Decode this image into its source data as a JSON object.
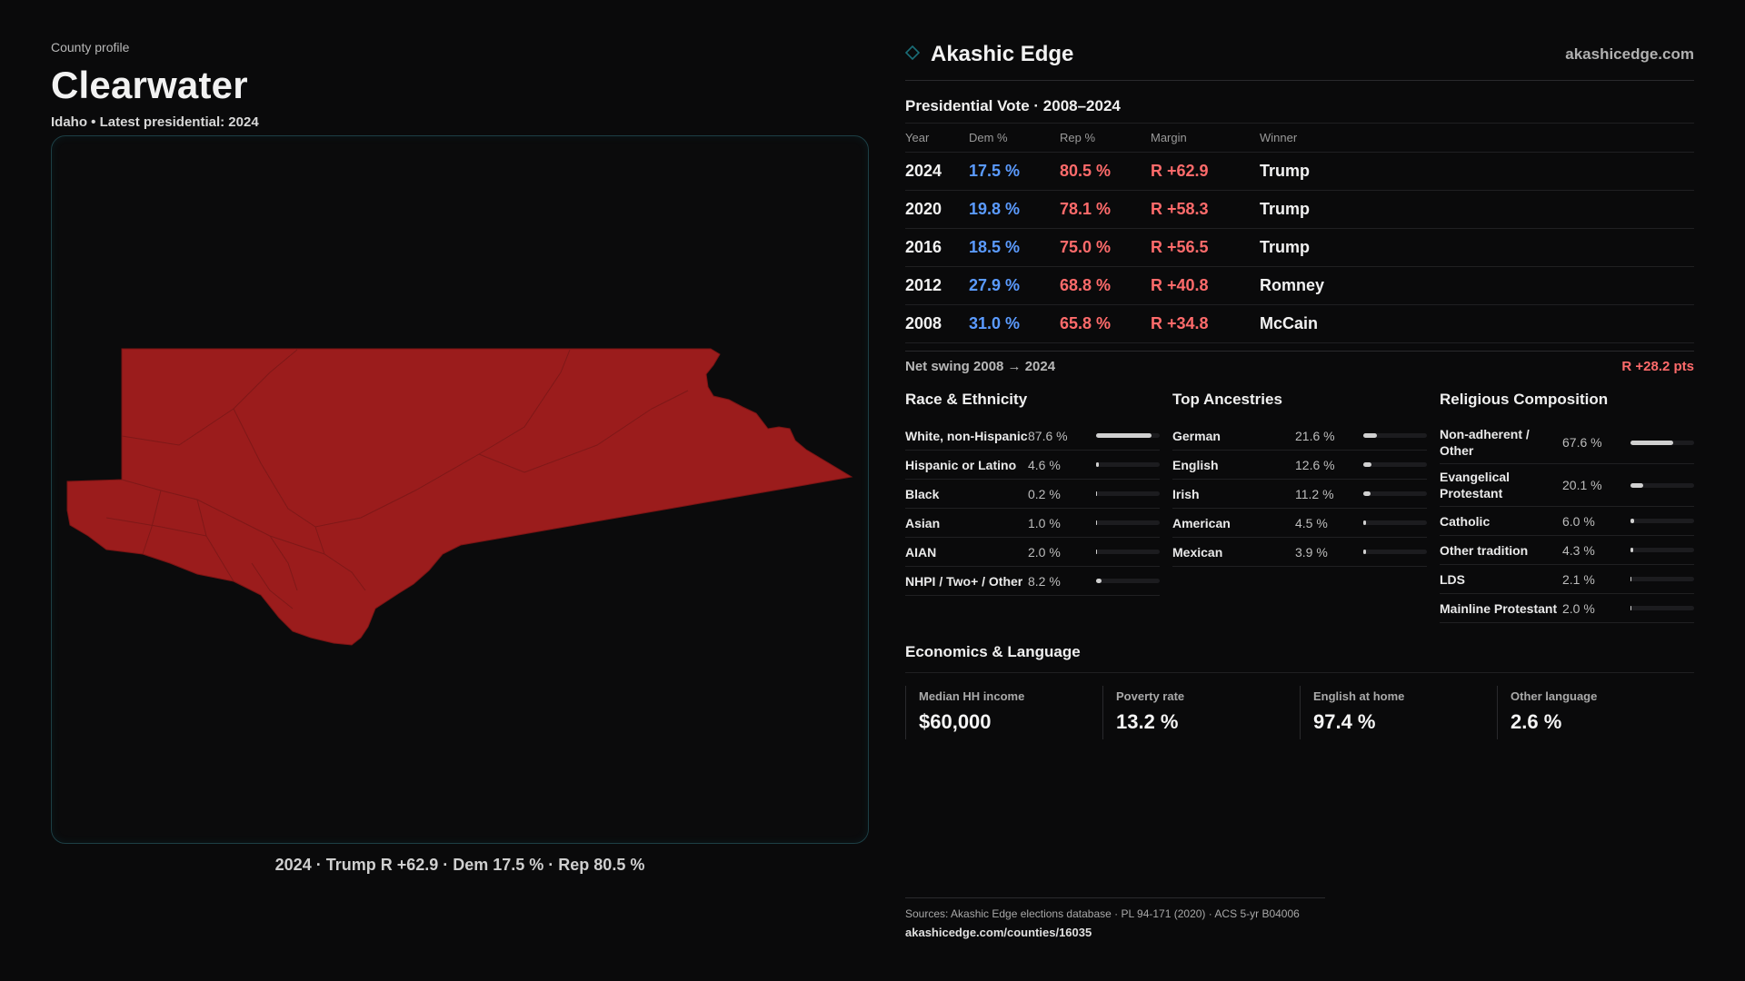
{
  "header": {
    "eyebrow": "County profile",
    "county": "Clearwater",
    "subtitle": "Idaho • Latest presidential: 2024"
  },
  "map": {
    "fill_color": "#9b1c1c",
    "caption": "2024 · Trump R +62.9 · Dem 17.5 % · Rep 80.5 %"
  },
  "brand": {
    "name": "Akashic Edge",
    "url": "akashicedge.com",
    "logo_icon": "diamond-outline-icon"
  },
  "vote": {
    "title": "Presidential Vote · 2008–2024",
    "headers": {
      "year": "Year",
      "dem": "Dem %",
      "rep": "Rep %",
      "margin": "Margin",
      "winner": "Winner"
    },
    "rows": [
      {
        "year": "2024",
        "dem": "17.5 %",
        "rep": "80.5 %",
        "margin": "R +62.9",
        "winner": "Trump"
      },
      {
        "year": "2020",
        "dem": "19.8 %",
        "rep": "78.1 %",
        "margin": "R +58.3",
        "winner": "Trump"
      },
      {
        "year": "2016",
        "dem": "18.5 %",
        "rep": "75.0 %",
        "margin": "R +56.5",
        "winner": "Trump"
      },
      {
        "year": "2012",
        "dem": "27.9 %",
        "rep": "68.8 %",
        "margin": "R +40.8",
        "winner": "Romney"
      },
      {
        "year": "2008",
        "dem": "31.0 %",
        "rep": "65.8 %",
        "margin": "R +34.8",
        "winner": "McCain"
      }
    ],
    "swing_label": "Net swing 2008 → 2024",
    "swing_value": "R +28.2 pts"
  },
  "race": {
    "title": "Race & Ethnicity",
    "rows": [
      {
        "label": "White, non-Hispanic",
        "pct": "87.6 %",
        "value": 87.6
      },
      {
        "label": "Hispanic or Latino",
        "pct": "4.6 %",
        "value": 4.6
      },
      {
        "label": "Black",
        "pct": "0.2 %",
        "value": 0.2
      },
      {
        "label": "Asian",
        "pct": "1.0 %",
        "value": 1.0
      },
      {
        "label": "AIAN",
        "pct": "2.0 %",
        "value": 2.0
      },
      {
        "label": "NHPI / Two+ / Other",
        "pct": "8.2 %",
        "value": 8.2
      }
    ]
  },
  "ancestry": {
    "title": "Top Ancestries",
    "rows": [
      {
        "label": "German",
        "pct": "21.6 %",
        "value": 21.6
      },
      {
        "label": "English",
        "pct": "12.6 %",
        "value": 12.6
      },
      {
        "label": "Irish",
        "pct": "11.2 %",
        "value": 11.2
      },
      {
        "label": "American",
        "pct": "4.5 %",
        "value": 4.5
      },
      {
        "label": "Mexican",
        "pct": "3.9 %",
        "value": 3.9
      }
    ]
  },
  "religion": {
    "title": "Religious Composition",
    "rows": [
      {
        "label": "Non-adherent / Other",
        "pct": "67.6 %",
        "value": 67.6
      },
      {
        "label": "Evangelical Protestant",
        "pct": "20.1 %",
        "value": 20.1
      },
      {
        "label": "Catholic",
        "pct": "6.0 %",
        "value": 6.0
      },
      {
        "label": "Other tradition",
        "pct": "4.3 %",
        "value": 4.3
      },
      {
        "label": "LDS",
        "pct": "2.1 %",
        "value": 2.1
      },
      {
        "label": "Mainline Protestant",
        "pct": "2.0 %",
        "value": 2.0
      }
    ]
  },
  "economics": {
    "title": "Economics & Language",
    "cells": [
      {
        "label": "Median HH income",
        "value": "$60,000"
      },
      {
        "label": "Poverty rate",
        "value": "13.2 %"
      },
      {
        "label": "English at home",
        "value": "97.4 %"
      },
      {
        "label": "Other language",
        "value": "2.6 %"
      }
    ]
  },
  "sources": {
    "text": "Sources: Akashic Edge elections database · PL 94-171 (2020) · ACS 5-yr B04006",
    "url": "akashicedge.com/counties/16035"
  }
}
